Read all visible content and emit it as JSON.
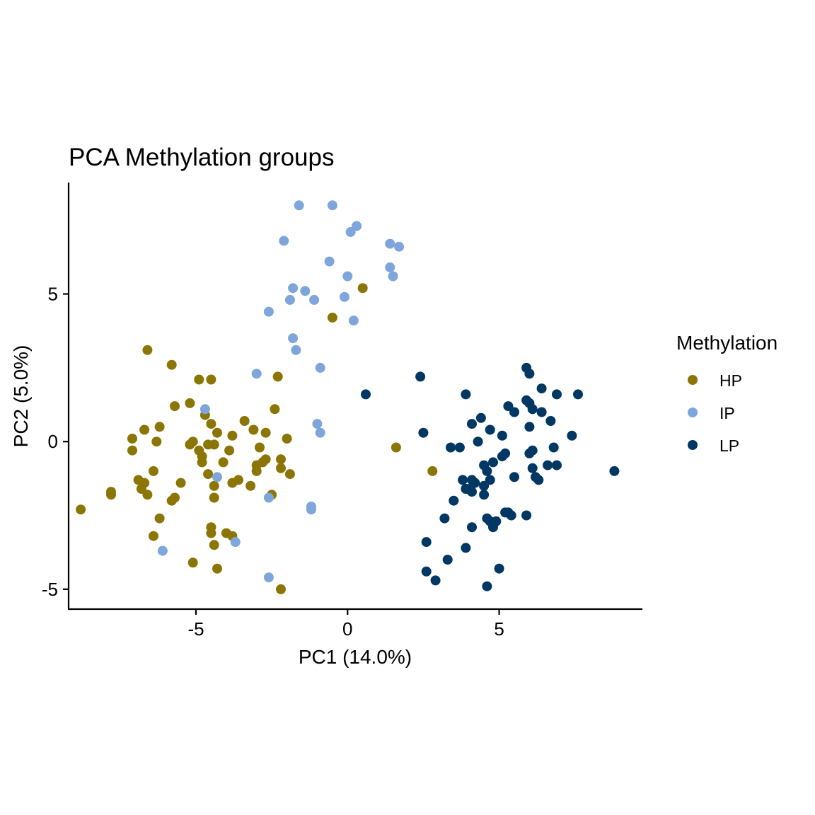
{
  "chart_data": {
    "type": "scatter",
    "title": "PCA Methylation groups",
    "xlabel": "PC1 (14.0%)",
    "ylabel": "PC2 (5.0%)",
    "xlim": [
      -9.2,
      9.7
    ],
    "ylim": [
      -5.65,
      8.75
    ],
    "xticks": [
      -5,
      0,
      5
    ],
    "xtick_labels": [
      "-5",
      "0",
      "5"
    ],
    "yticks": [
      -5,
      0,
      5
    ],
    "ytick_labels": [
      "-5",
      "0",
      "5"
    ],
    "grid": false,
    "legend": {
      "title": "Methylation",
      "position": "right",
      "entries": [
        {
          "label": "HP",
          "color": "#8b7504"
        },
        {
          "label": "IP",
          "color": "#7ea6da"
        },
        {
          "label": "LP",
          "color": "#003763"
        }
      ]
    },
    "series": [
      {
        "name": "HP",
        "color": "#8b7504",
        "points": [
          [
            -8.8,
            -2.3
          ],
          [
            -7.8,
            -1.7
          ],
          [
            -7.8,
            -1.8
          ],
          [
            -7.1,
            0.1
          ],
          [
            -7.1,
            -0.3
          ],
          [
            -6.9,
            -1.3
          ],
          [
            -6.8,
            -1.6
          ],
          [
            -6.7,
            -1.4
          ],
          [
            -6.7,
            0.4
          ],
          [
            -6.6,
            -1.8
          ],
          [
            -6.6,
            3.1
          ],
          [
            -6.4,
            -3.2
          ],
          [
            -6.4,
            -1.0
          ],
          [
            -6.3,
            0.0
          ],
          [
            -6.2,
            0.5
          ],
          [
            -6.2,
            -2.6
          ],
          [
            -5.8,
            -2.0
          ],
          [
            -5.8,
            2.6
          ],
          [
            -5.7,
            -1.9
          ],
          [
            -5.7,
            1.2
          ],
          [
            -5.5,
            -1.4
          ],
          [
            -5.2,
            1.3
          ],
          [
            -5.2,
            -0.1
          ],
          [
            -5.1,
            0.0
          ],
          [
            -5.1,
            -4.1
          ],
          [
            -4.9,
            -0.3
          ],
          [
            -4.9,
            2.1
          ],
          [
            -4.8,
            -0.5
          ],
          [
            -4.8,
            -0.7
          ],
          [
            -4.7,
            0.9
          ],
          [
            -4.6,
            -0.1
          ],
          [
            -4.6,
            -1.1
          ],
          [
            -4.5,
            0.6
          ],
          [
            -4.5,
            -2.9
          ],
          [
            -4.5,
            -3.1
          ],
          [
            -4.5,
            2.1
          ],
          [
            -4.4,
            -0.1
          ],
          [
            -4.4,
            -1.5
          ],
          [
            -4.4,
            -3.5
          ],
          [
            -4.4,
            -1.9
          ],
          [
            -4.3,
            0.3
          ],
          [
            -4.3,
            -4.3
          ],
          [
            -4.1,
            -0.7
          ],
          [
            -4.0,
            -3.1
          ],
          [
            -3.9,
            -0.3
          ],
          [
            -3.8,
            0.2
          ],
          [
            -3.8,
            -1.4
          ],
          [
            -3.8,
            -3.2
          ],
          [
            -3.6,
            -1.3
          ],
          [
            -3.4,
            0.7
          ],
          [
            -3.2,
            -1.5
          ],
          [
            -3.1,
            0.4
          ],
          [
            -3.0,
            -0.8
          ],
          [
            -3.0,
            -1.0
          ],
          [
            -2.9,
            -0.2
          ],
          [
            -2.8,
            -0.7
          ],
          [
            -2.7,
            0.3
          ],
          [
            -2.7,
            -0.6
          ],
          [
            -2.5,
            -1.8
          ],
          [
            -2.4,
            1.1
          ],
          [
            -2.3,
            2.2
          ],
          [
            -2.2,
            -0.6
          ],
          [
            -2.2,
            -5.0
          ],
          [
            -2.2,
            -0.9
          ],
          [
            -2.0,
            0.1
          ],
          [
            -1.9,
            -1.1
          ],
          [
            -0.5,
            4.2
          ],
          [
            0.5,
            5.2
          ],
          [
            1.6,
            -0.2
          ],
          [
            2.8,
            -1.0
          ]
        ]
      },
      {
        "name": "IP",
        "color": "#7ea6da",
        "points": [
          [
            -1.6,
            8.0
          ],
          [
            -0.5,
            8.0
          ],
          [
            0.3,
            7.3
          ],
          [
            0.1,
            7.1
          ],
          [
            -2.1,
            6.8
          ],
          [
            1.4,
            6.7
          ],
          [
            1.7,
            6.6
          ],
          [
            -0.6,
            6.1
          ],
          [
            1.4,
            5.9
          ],
          [
            0.0,
            5.6
          ],
          [
            1.5,
            5.6
          ],
          [
            -1.8,
            5.2
          ],
          [
            -1.4,
            5.1
          ],
          [
            -0.1,
            4.9
          ],
          [
            -1.9,
            4.8
          ],
          [
            -1.1,
            4.8
          ],
          [
            -2.6,
            4.4
          ],
          [
            0.2,
            4.1
          ],
          [
            -1.8,
            3.5
          ],
          [
            -1.7,
            3.1
          ],
          [
            -0.9,
            2.5
          ],
          [
            -3.0,
            2.3
          ],
          [
            -4.7,
            1.1
          ],
          [
            -1.0,
            0.6
          ],
          [
            -0.9,
            0.3
          ],
          [
            -4.3,
            -1.2
          ],
          [
            -2.6,
            -1.9
          ],
          [
            -1.2,
            -2.2
          ],
          [
            -1.2,
            -2.3
          ],
          [
            -3.7,
            -3.4
          ],
          [
            -6.1,
            -3.7
          ],
          [
            -2.6,
            -4.6
          ]
        ]
      },
      {
        "name": "LP",
        "color": "#003763",
        "points": [
          [
            2.4,
            2.2
          ],
          [
            0.6,
            1.6
          ],
          [
            5.9,
            2.5
          ],
          [
            6.0,
            2.3
          ],
          [
            6.4,
            1.8
          ],
          [
            3.9,
            1.6
          ],
          [
            6.9,
            1.6
          ],
          [
            7.6,
            1.6
          ],
          [
            5.9,
            1.4
          ],
          [
            6.0,
            1.3
          ],
          [
            5.3,
            1.2
          ],
          [
            6.1,
            1.1
          ],
          [
            6.4,
            1.0
          ],
          [
            5.5,
            1.0
          ],
          [
            4.4,
            0.8
          ],
          [
            4.1,
            0.6
          ],
          [
            6.7,
            0.7
          ],
          [
            6.0,
            0.5
          ],
          [
            4.7,
            0.4
          ],
          [
            2.5,
            0.3
          ],
          [
            7.4,
            0.2
          ],
          [
            5.1,
            0.2
          ],
          [
            4.3,
            0.0
          ],
          [
            3.4,
            -0.2
          ],
          [
            3.7,
            -0.2
          ],
          [
            6.8,
            -0.2
          ],
          [
            6.1,
            -0.3
          ],
          [
            6.0,
            -0.4
          ],
          [
            5.2,
            -0.4
          ],
          [
            5.1,
            -0.5
          ],
          [
            4.8,
            -0.7
          ],
          [
            6.6,
            -0.8
          ],
          [
            6.9,
            -0.8
          ],
          [
            4.5,
            -0.8
          ],
          [
            6.1,
            -0.9
          ],
          [
            8.8,
            -1.0
          ],
          [
            4.6,
            -1.0
          ],
          [
            5.5,
            -1.2
          ],
          [
            6.2,
            -1.2
          ],
          [
            6.3,
            -1.3
          ],
          [
            3.8,
            -1.3
          ],
          [
            4.7,
            -1.3
          ],
          [
            4.1,
            -1.3
          ],
          [
            4.2,
            -1.4
          ],
          [
            4.5,
            -1.5
          ],
          [
            4.0,
            -1.6
          ],
          [
            3.9,
            -1.6
          ],
          [
            4.1,
            -1.7
          ],
          [
            4.5,
            -1.8
          ],
          [
            3.5,
            -2.0
          ],
          [
            5.2,
            -2.4
          ],
          [
            5.3,
            -2.4
          ],
          [
            5.4,
            -2.5
          ],
          [
            5.9,
            -2.5
          ],
          [
            3.2,
            -2.6
          ],
          [
            4.6,
            -2.6
          ],
          [
            4.7,
            -2.7
          ],
          [
            4.9,
            -2.7
          ],
          [
            4.1,
            -2.9
          ],
          [
            4.8,
            -2.9
          ],
          [
            2.6,
            -3.4
          ],
          [
            3.9,
            -3.6
          ],
          [
            3.3,
            -4.0
          ],
          [
            5.0,
            -4.3
          ],
          [
            2.6,
            -4.4
          ],
          [
            2.9,
            -4.7
          ],
          [
            4.6,
            -4.9
          ]
        ]
      }
    ]
  }
}
